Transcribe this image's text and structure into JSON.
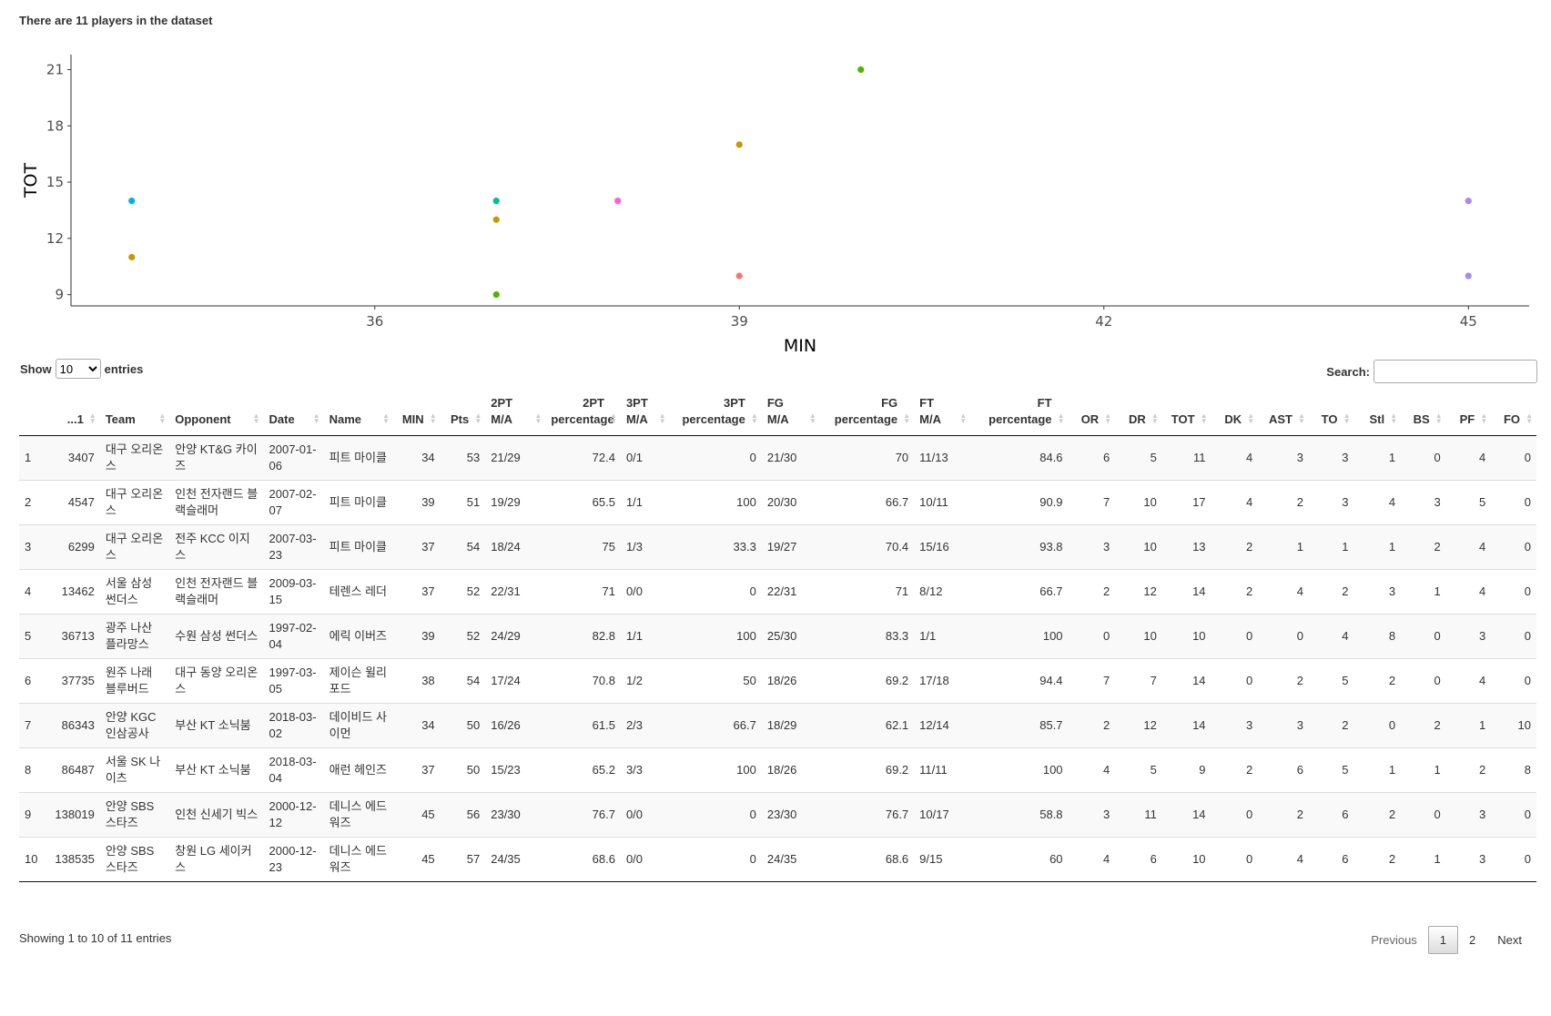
{
  "summary": "There are 11 players in the dataset",
  "chart_data": {
    "type": "scatter",
    "xlabel": "MIN",
    "ylabel": "TOT",
    "xlim": [
      33.5,
      45.5
    ],
    "ylim": [
      8.4,
      21.8
    ],
    "xticks": [
      "36",
      "39",
      "42",
      "45"
    ],
    "yticks": [
      "9",
      "12",
      "15",
      "18",
      "21"
    ],
    "points": [
      {
        "x": 34,
        "y": 14,
        "color": "#00B0F6"
      },
      {
        "x": 34,
        "y": 11,
        "color": "#C49A00"
      },
      {
        "x": 37,
        "y": 14,
        "color": "#00C094"
      },
      {
        "x": 37,
        "y": 13,
        "color": "#C49A00"
      },
      {
        "x": 37,
        "y": 9,
        "color": "#53B400"
      },
      {
        "x": 38,
        "y": 14,
        "color": "#FB61D7"
      },
      {
        "x": 39,
        "y": 17,
        "color": "#C49A00"
      },
      {
        "x": 39,
        "y": 10,
        "color": "#F8766D"
      },
      {
        "x": 40,
        "y": 21,
        "color": "#53B400"
      },
      {
        "x": 45,
        "y": 14,
        "color": "#A58AFF"
      },
      {
        "x": 45,
        "y": 10,
        "color": "#A58AFF"
      }
    ]
  },
  "controls": {
    "show_label": "Show",
    "entries_label": "entries",
    "length_selected": "10",
    "search_label": "Search:",
    "search_value": ""
  },
  "table": {
    "columns": [
      {
        "line1": "",
        "line2": "",
        "num": false
      },
      {
        "line1": "",
        "line2": "...1",
        "num": true
      },
      {
        "line1": "",
        "line2": "Team",
        "num": false
      },
      {
        "line1": "",
        "line2": "Opponent",
        "num": false
      },
      {
        "line1": "",
        "line2": "Date",
        "num": false
      },
      {
        "line1": "",
        "line2": "Name",
        "num": false
      },
      {
        "line1": "",
        "line2": "MIN",
        "num": true
      },
      {
        "line1": "",
        "line2": "Pts",
        "num": true
      },
      {
        "line1": "2PT",
        "line2": "M/A",
        "num": false
      },
      {
        "line1": "2PT",
        "line2": "percentage",
        "num": true
      },
      {
        "line1": "3PT",
        "line2": "M/A",
        "num": false
      },
      {
        "line1": "3PT",
        "line2": "percentage",
        "num": true
      },
      {
        "line1": "FG",
        "line2": "M/A",
        "num": false
      },
      {
        "line1": "FG",
        "line2": "percentage",
        "num": true
      },
      {
        "line1": "FT",
        "line2": "M/A",
        "num": false
      },
      {
        "line1": "FT",
        "line2": "percentage",
        "num": true
      },
      {
        "line1": "",
        "line2": "OR",
        "num": true
      },
      {
        "line1": "",
        "line2": "DR",
        "num": true
      },
      {
        "line1": "",
        "line2": "TOT",
        "num": true
      },
      {
        "line1": "",
        "line2": "DK",
        "num": true
      },
      {
        "line1": "",
        "line2": "AST",
        "num": true
      },
      {
        "line1": "",
        "line2": "TO",
        "num": true
      },
      {
        "line1": "",
        "line2": "Stl",
        "num": true
      },
      {
        "line1": "",
        "line2": "BS",
        "num": true
      },
      {
        "line1": "",
        "line2": "PF",
        "num": true
      },
      {
        "line1": "",
        "line2": "FO",
        "num": true
      }
    ],
    "rows": [
      [
        "1",
        "3407",
        "대구 오리온스",
        "안양 KT&G 카이즈",
        "2007-01-06",
        "피트 마이클",
        "34",
        "53",
        "21/29",
        "72.4",
        "0/1",
        "0",
        "21/30",
        "70",
        "11/13",
        "84.6",
        "6",
        "5",
        "11",
        "4",
        "3",
        "3",
        "1",
        "0",
        "4",
        "0"
      ],
      [
        "2",
        "4547",
        "대구 오리온스",
        "인천 전자랜드 블랙슬래머",
        "2007-02-07",
        "피트 마이클",
        "39",
        "51",
        "19/29",
        "65.5",
        "1/1",
        "100",
        "20/30",
        "66.7",
        "10/11",
        "90.9",
        "7",
        "10",
        "17",
        "4",
        "2",
        "3",
        "4",
        "3",
        "5",
        "0"
      ],
      [
        "3",
        "6299",
        "대구 오리온스",
        "전주 KCC 이지스",
        "2007-03-23",
        "피트 마이클",
        "37",
        "54",
        "18/24",
        "75",
        "1/3",
        "33.3",
        "19/27",
        "70.4",
        "15/16",
        "93.8",
        "3",
        "10",
        "13",
        "2",
        "1",
        "1",
        "1",
        "2",
        "4",
        "0"
      ],
      [
        "4",
        "13462",
        "서울 삼성 썬더스",
        "인천 전자랜드 블랙슬래머",
        "2009-03-15",
        "테렌스 레더",
        "37",
        "52",
        "22/31",
        "71",
        "0/0",
        "0",
        "22/31",
        "71",
        "8/12",
        "66.7",
        "2",
        "12",
        "14",
        "2",
        "4",
        "2",
        "3",
        "1",
        "4",
        "0"
      ],
      [
        "5",
        "36713",
        "광주 나산 플라망스",
        "수원 삼성 썬더스",
        "1997-02-04",
        "에릭 이버즈",
        "39",
        "52",
        "24/29",
        "82.8",
        "1/1",
        "100",
        "25/30",
        "83.3",
        "1/1",
        "100",
        "0",
        "10",
        "10",
        "0",
        "0",
        "4",
        "8",
        "0",
        "3",
        "0"
      ],
      [
        "6",
        "37735",
        "원주 나래 블루버드",
        "대구 동양 오리온스",
        "1997-03-05",
        "제이슨 윌리포드",
        "38",
        "54",
        "17/24",
        "70.8",
        "1/2",
        "50",
        "18/26",
        "69.2",
        "17/18",
        "94.4",
        "7",
        "7",
        "14",
        "0",
        "2",
        "5",
        "2",
        "0",
        "4",
        "0"
      ],
      [
        "7",
        "86343",
        "안양 KGC 인삼공사",
        "부산 KT 소닉붐",
        "2018-03-02",
        "데이비드 사이먼",
        "34",
        "50",
        "16/26",
        "61.5",
        "2/3",
        "66.7",
        "18/29",
        "62.1",
        "12/14",
        "85.7",
        "2",
        "12",
        "14",
        "3",
        "3",
        "2",
        "0",
        "2",
        "1",
        "10"
      ],
      [
        "8",
        "86487",
        "서울 SK 나이츠",
        "부산 KT 소닉붐",
        "2018-03-04",
        "애런 헤인즈",
        "37",
        "50",
        "15/23",
        "65.2",
        "3/3",
        "100",
        "18/26",
        "69.2",
        "11/11",
        "100",
        "4",
        "5",
        "9",
        "2",
        "6",
        "5",
        "1",
        "1",
        "2",
        "8"
      ],
      [
        "9",
        "138019",
        "안양 SBS 스타즈",
        "인천 신세기 빅스",
        "2000-12-12",
        "데니스 에드워즈",
        "45",
        "56",
        "23/30",
        "76.7",
        "0/0",
        "0",
        "23/30",
        "76.7",
        "10/17",
        "58.8",
        "3",
        "11",
        "14",
        "0",
        "2",
        "6",
        "2",
        "0",
        "3",
        "0"
      ],
      [
        "10",
        "138535",
        "안양 SBS 스타즈",
        "창원 LG 세이커스",
        "2000-12-23",
        "데니스 에드워즈",
        "45",
        "57",
        "24/35",
        "68.6",
        "0/0",
        "0",
        "24/35",
        "68.6",
        "9/15",
        "60",
        "4",
        "6",
        "10",
        "0",
        "4",
        "6",
        "2",
        "1",
        "3",
        "0"
      ]
    ]
  },
  "footer": {
    "info": "Showing 1 to 10 of 11 entries",
    "prev": "Previous",
    "pages": [
      "1",
      "2"
    ],
    "next": "Next"
  }
}
